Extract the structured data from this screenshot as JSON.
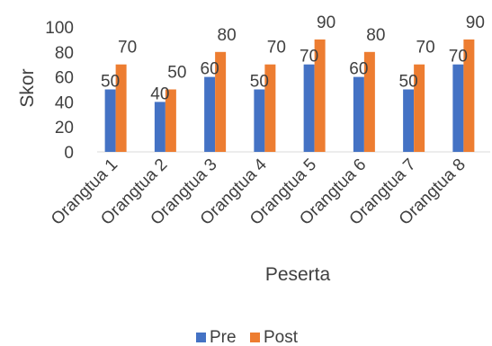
{
  "chart_data": {
    "type": "bar",
    "categories": [
      "Orangtua 1",
      "Orangtua 2",
      "Orangtua 3",
      "Orangtua 4",
      "Orangtua 5",
      "Orangtua 6",
      "Orangtua 7",
      "Orangtua 8"
    ],
    "series": [
      {
        "name": "Pre",
        "values": [
          50,
          40,
          60,
          50,
          70,
          60,
          50,
          70
        ],
        "color": "#4472C4"
      },
      {
        "name": "Post",
        "values": [
          70,
          50,
          80,
          70,
          90,
          80,
          70,
          90
        ],
        "color": "#ED7D31"
      }
    ],
    "xlabel": "Peserta",
    "ylabel": "Skor",
    "ylim": [
      0,
      100
    ],
    "yticks": [
      0,
      20,
      40,
      60,
      80,
      100
    ],
    "grid": false,
    "data_labels": true,
    "legend_position": "bottom"
  }
}
